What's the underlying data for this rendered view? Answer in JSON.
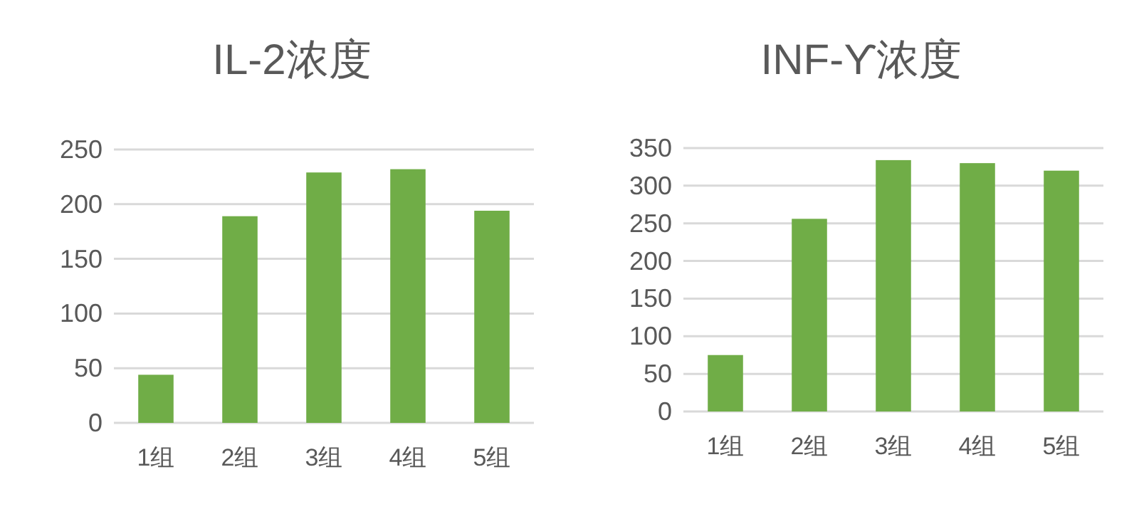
{
  "chart_data": [
    {
      "type": "bar",
      "title": "IL-2浓度",
      "categories": [
        "1组",
        "2组",
        "3组",
        "4组",
        "5组"
      ],
      "values": [
        44,
        189,
        229,
        232,
        194
      ],
      "color": "#70ad47",
      "ylim": [
        0,
        250
      ],
      "yticks": [
        0,
        50,
        100,
        150,
        200,
        250
      ],
      "grid": "y"
    },
    {
      "type": "bar",
      "title": "INF-ϒ浓度",
      "categories": [
        "1组",
        "2组",
        "3组",
        "4组",
        "5组"
      ],
      "values": [
        75,
        256,
        334,
        330,
        320
      ],
      "color": "#70ad47",
      "ylim": [
        0,
        350
      ],
      "yticks": [
        0,
        50,
        100,
        150,
        200,
        250,
        300,
        350
      ],
      "grid": "y"
    }
  ]
}
